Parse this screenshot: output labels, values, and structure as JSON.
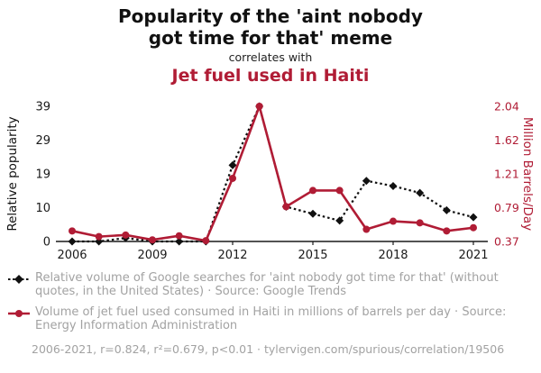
{
  "header": {
    "title": "Popularity of the 'aint nobody\ngot time for that' meme",
    "subtitle": "correlates with",
    "second_title": "Jet fuel used in Haiti"
  },
  "colors": {
    "accent_red": "#b01c35",
    "text_gray": "#a2a2a2",
    "text_black": "#1a1a1a"
  },
  "chart_data": {
    "type": "line",
    "x": [
      2006,
      2007,
      2008,
      2009,
      2010,
      2011,
      2012,
      2013,
      2014,
      2015,
      2016,
      2017,
      2018,
      2019,
      2020,
      2021
    ],
    "x_ticks": [
      "2006",
      "2009",
      "2012",
      "2015",
      "2018",
      "2021"
    ],
    "x_range": [
      2006,
      2021
    ],
    "series": [
      {
        "name": "Relative volume of Google searches for 'aint nobody got time for that'",
        "axis": "left",
        "color": "#111111",
        "style": "dashed",
        "marker": "diamond",
        "values": [
          0,
          0,
          1,
          0,
          0,
          0,
          22,
          39,
          10,
          8,
          6,
          17.5,
          16,
          14,
          9,
          7
        ]
      },
      {
        "name": "Volume of jet fuel used consumed in Haiti",
        "axis": "right",
        "color": "#b01c35",
        "style": "solid",
        "marker": "circle",
        "values": [
          0.5,
          0.43,
          0.45,
          0.39,
          0.44,
          0.38,
          1.15,
          2.04,
          0.8,
          1.0,
          1.0,
          0.52,
          0.62,
          0.6,
          0.5,
          0.54
        ]
      }
    ],
    "left_axis": {
      "label": "Relative popularity",
      "ticks": [
        "0",
        "10",
        "19",
        "29",
        "39"
      ],
      "range": [
        0,
        39
      ]
    },
    "right_axis": {
      "label": "Million Barrels/Day",
      "ticks": [
        "0.37",
        "0.79",
        "1.21",
        "1.62",
        "2.04"
      ],
      "range": [
        0.37,
        2.04
      ]
    },
    "grid": false,
    "legend_position": "below"
  },
  "legend": {
    "items": [
      {
        "text": "Relative volume of Google searches for 'aint nobody got time for that' (without quotes, in the United States) · Source: Google Trends"
      },
      {
        "text": "Volume of jet fuel used consumed in Haiti in millions of barrels per day · Source: Energy Information Administration"
      }
    ]
  },
  "footer": {
    "text": "2006-2021, r=0.824, r²=0.679, p<0.01 · tylervigen.com/spurious/correlation/19506"
  }
}
